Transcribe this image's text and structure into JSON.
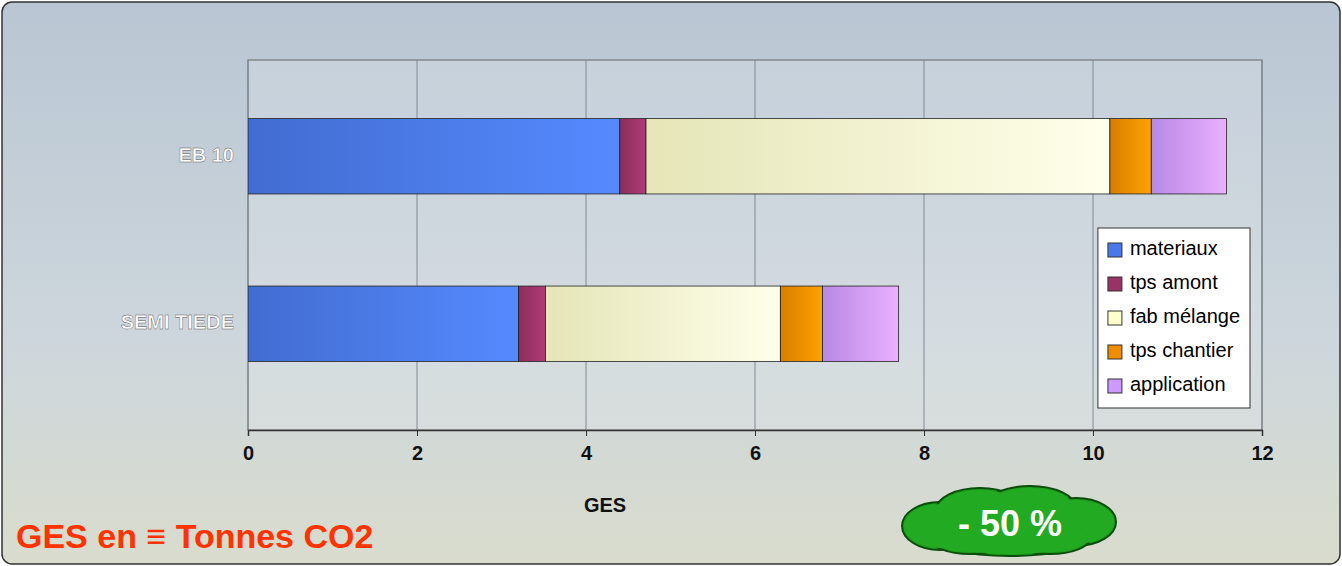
{
  "chart_data": {
    "type": "bar",
    "orientation": "horizontal",
    "stacked": true,
    "categories": [
      "EB 10",
      "SEMI TIEDE"
    ],
    "series": [
      {
        "name": "materiaux",
        "color": "#4a78e8",
        "values": [
          4.4,
          3.2
        ]
      },
      {
        "name": "tps amont",
        "color": "#993366",
        "values": [
          0.31,
          0.32
        ]
      },
      {
        "name": "fab mélange",
        "color": "#ffffcc",
        "values": [
          5.49,
          2.78
        ]
      },
      {
        "name": "tps chantier",
        "color": "#f08c00",
        "values": [
          0.49,
          0.5
        ]
      },
      {
        "name": "application",
        "color": "#cc99ff",
        "values": [
          0.89,
          0.9
        ]
      }
    ],
    "xlim": [
      0,
      12
    ],
    "xticks": [
      0,
      2,
      4,
      6,
      8,
      10,
      12
    ],
    "x_label": "GES",
    "annotations": [
      "GES en ≡ Tonnes CO2",
      "- 50 %"
    ],
    "legend": "right",
    "grid": true
  }
}
